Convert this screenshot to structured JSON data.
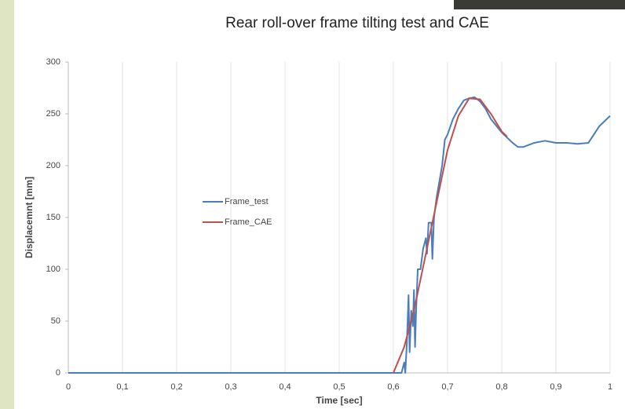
{
  "chart_data": {
    "type": "line",
    "title": "Rear roll-over frame tilting test and CAE",
    "xlabel": "Time [sec]",
    "ylabel": "Displacemnt [mm]",
    "xlim": [
      0,
      1
    ],
    "ylim": [
      0,
      300
    ],
    "xticks": [
      0,
      {
        "value": 0.1,
        "label": "0,1"
      },
      {
        "value": 0.2,
        "label": "0,2"
      },
      {
        "value": 0.3,
        "label": "0,3"
      },
      {
        "value": 0.4,
        "label": "0,4"
      },
      {
        "value": 0.5,
        "label": "0,5"
      },
      {
        "value": 0.6,
        "label": "0,6"
      },
      {
        "value": 0.7,
        "label": "0,7"
      },
      {
        "value": 0.8,
        "label": "0,8"
      },
      {
        "value": 0.9,
        "label": "0,9"
      },
      1
    ],
    "yticks": [
      0,
      50,
      100,
      150,
      200,
      250,
      300
    ],
    "grid": "x",
    "legend": "center-left",
    "series": [
      {
        "name": "Frame_test",
        "color": "#4a7ebb",
        "x": [
          0,
          0.6,
          0.615,
          0.62,
          0.622,
          0.625,
          0.628,
          0.63,
          0.633,
          0.636,
          0.638,
          0.64,
          0.642,
          0.645,
          0.65,
          0.655,
          0.66,
          0.662,
          0.665,
          0.67,
          0.672,
          0.675,
          0.68,
          0.69,
          0.695,
          0.7,
          0.71,
          0.72,
          0.73,
          0.74,
          0.75,
          0.76,
          0.77,
          0.78,
          0.8,
          0.82,
          0.83,
          0.84,
          0.86,
          0.88,
          0.9,
          0.92,
          0.94,
          0.96,
          0.97,
          0.98,
          1
        ],
        "values": [
          0,
          0,
          0,
          10,
          0,
          30,
          75,
          20,
          60,
          45,
          80,
          25,
          60,
          100,
          100,
          120,
          130,
          115,
          145,
          145,
          110,
          150,
          170,
          200,
          225,
          230,
          245,
          255,
          263,
          265,
          266,
          262,
          255,
          245,
          232,
          222,
          218,
          218,
          222,
          224,
          222,
          222,
          221,
          222,
          230,
          238,
          248
        ]
      },
      {
        "name": "Frame_CAE",
        "color": "#c0504d",
        "x": [
          0.6,
          0.62,
          0.64,
          0.66,
          0.68,
          0.7,
          0.72,
          0.74,
          0.76,
          0.78,
          0.8,
          0.81
        ],
        "values": [
          0,
          25,
          65,
          115,
          165,
          215,
          248,
          265,
          264,
          250,
          233,
          228
        ]
      }
    ]
  }
}
